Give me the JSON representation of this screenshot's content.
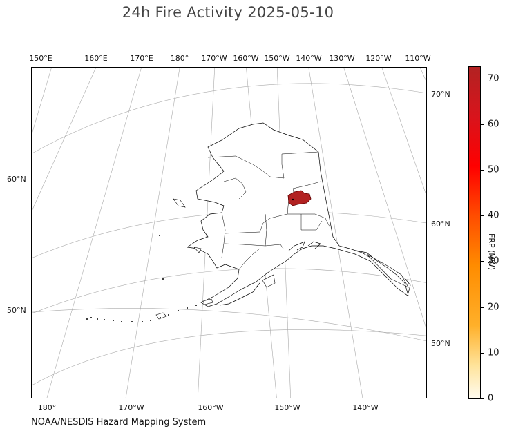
{
  "title": "24h Fire Activity 2025-05-10",
  "source": "NOAA/NESDIS Hazard Mapping System",
  "colors": {
    "fire_zone": "#b22222",
    "fire_zone_stroke": "#600000",
    "hotspot": "#000000"
  },
  "axes": {
    "top_lon_labels": [
      "150°E",
      "160°E",
      "170°E",
      "180°",
      "170°W",
      "160°W",
      "150°W",
      "140°W",
      "130°W",
      "120°W",
      "110°W"
    ],
    "bottom_lon_labels": [
      "180°",
      "170°W",
      "160°W",
      "150°W",
      "140°W"
    ],
    "left_lat_labels": [
      "60°N",
      "50°N"
    ],
    "right_lat_labels": [
      "70°N",
      "60°N",
      "50°N"
    ]
  },
  "colorbar": {
    "label": "FRP (MW)",
    "min": 0,
    "max": 72.5,
    "ticks": [
      "0",
      "10",
      "20",
      "30",
      "40",
      "50",
      "60",
      "70"
    ],
    "colors": [
      "#fffbef",
      "#ffe39a",
      "#ffb02a",
      "#ff8c00",
      "#ff4d00",
      "#ff0000",
      "#d8141c",
      "#b22222"
    ]
  },
  "fire": {
    "frp_mw": 72,
    "region": "interior Alaska zone"
  }
}
